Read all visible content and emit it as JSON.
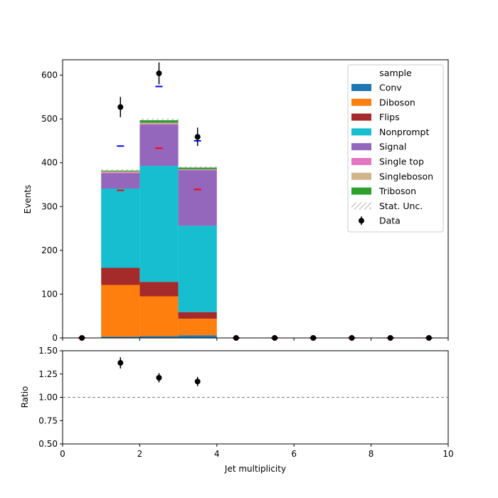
{
  "chart_data": [
    {
      "type": "bar",
      "stacked": true,
      "bin_edges": [
        0,
        1,
        2,
        3,
        4,
        5,
        6,
        7,
        8,
        9,
        10
      ],
      "xlabel": "Jet multiplicity",
      "ylabel": "Events",
      "xlim": [
        0,
        10
      ],
      "ylim": [
        0,
        635
      ],
      "yticks": [
        0,
        100,
        200,
        300,
        400,
        500,
        600
      ],
      "xticks": [
        0,
        2,
        4,
        6,
        8,
        10
      ],
      "legend_title": "sample",
      "legend_position": "top-right",
      "grid": false,
      "series": [
        {
          "name": "Conv",
          "color": "#1f77b4",
          "values": [
            0,
            3,
            4,
            6,
            0,
            0,
            0,
            0,
            0,
            0
          ]
        },
        {
          "name": "Diboson",
          "color": "#ff7f0e",
          "values": [
            0,
            118,
            91,
            38,
            0,
            0,
            0,
            0,
            0,
            0
          ]
        },
        {
          "name": "Flips",
          "color": "#a52a2a",
          "values": [
            0,
            39,
            33,
            15,
            0,
            0,
            0,
            0,
            0,
            0
          ]
        },
        {
          "name": "Nonprompt",
          "color": "#17becf",
          "values": [
            0,
            181,
            265,
            197,
            0,
            0,
            0,
            0,
            0,
            0
          ]
        },
        {
          "name": "Signal",
          "color": "#9467bd",
          "values": [
            0,
            35,
            94,
            127,
            0,
            0,
            0,
            0,
            0,
            0
          ]
        },
        {
          "name": "Single top",
          "color": "#e377c2",
          "values": [
            0,
            2,
            2,
            1,
            0,
            0,
            0,
            0,
            0,
            0
          ]
        },
        {
          "name": "Singleboson",
          "color": "#d2b48c",
          "values": [
            0,
            2,
            2,
            1,
            0,
            0,
            0,
            0,
            0,
            0
          ]
        },
        {
          "name": "Triboson",
          "color": "#2ca02c",
          "values": [
            0,
            2,
            6,
            4,
            0,
            0,
            0,
            0,
            0,
            0
          ]
        }
      ],
      "stat_unc_label": "Stat. Unc.",
      "stat_unc": [
        0,
        3,
        4,
        3,
        0,
        0,
        0,
        0,
        0,
        0
      ],
      "data": {
        "name": "Data",
        "x": [
          0.5,
          1.5,
          2.5,
          3.5,
          4.5,
          5.5,
          6.5,
          7.5,
          8.5,
          9.5
        ],
        "y": [
          0,
          527,
          604,
          459,
          0,
          0,
          0,
          0,
          0,
          0
        ],
        "yerr": [
          0,
          23,
          25,
          21,
          0,
          0,
          0,
          0,
          0,
          0
        ]
      },
      "blue_markers": {
        "x": [
          1.5,
          2.5,
          3.5
        ],
        "y": [
          438,
          574,
          450
        ],
        "color": "#0000ff"
      },
      "red_markers": {
        "x": [
          0.5,
          1.5,
          2.5,
          3.5,
          4.5,
          5.5,
          6.5,
          7.5,
          8.5,
          9.5
        ],
        "y": [
          0,
          337,
          433,
          339,
          0,
          0,
          0,
          0,
          0,
          0
        ],
        "color": "#ff0000"
      }
    },
    {
      "type": "scatter",
      "xlabel": "Jet multiplicity",
      "ylabel": "Ratio",
      "xlim": [
        0,
        10
      ],
      "ylim": [
        0.5,
        1.5
      ],
      "yticks": [
        "0.50",
        "0.75",
        "1.00",
        "1.25",
        "1.50"
      ],
      "ytick_values": [
        0.5,
        0.75,
        1.0,
        1.25,
        1.5
      ],
      "xticks": [
        0,
        2,
        4,
        6,
        8,
        10
      ],
      "reference_line": 1.0,
      "x": [
        1.5,
        2.5,
        3.5
      ],
      "y": [
        1.37,
        1.21,
        1.17
      ],
      "yerr": [
        0.06,
        0.05,
        0.05
      ]
    }
  ]
}
